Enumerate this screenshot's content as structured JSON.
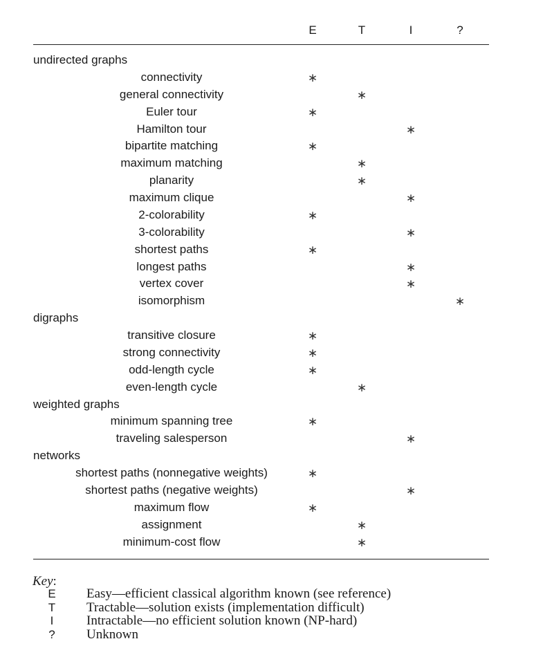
{
  "columns": [
    "E",
    "T",
    "I",
    "?"
  ],
  "groups": [
    {
      "label": "undirected graphs",
      "items": [
        {
          "label": "connectivity",
          "mark": "E"
        },
        {
          "label": "general connectivity",
          "mark": "T"
        },
        {
          "label": "Euler tour",
          "mark": "E"
        },
        {
          "label": "Hamilton tour",
          "mark": "I"
        },
        {
          "label": "bipartite matching",
          "mark": "E"
        },
        {
          "label": "maximum matching",
          "mark": "T"
        },
        {
          "label": "planarity",
          "mark": "T"
        },
        {
          "label": "maximum clique",
          "mark": "I"
        },
        {
          "label": "2-colorability",
          "mark": "E"
        },
        {
          "label": "3-colorability",
          "mark": "I"
        },
        {
          "label": "shortest paths",
          "mark": "E"
        },
        {
          "label": "longest paths",
          "mark": "I"
        },
        {
          "label": "vertex cover",
          "mark": "I"
        },
        {
          "label": "isomorphism",
          "mark": "?"
        }
      ]
    },
    {
      "label": "digraphs",
      "items": [
        {
          "label": "transitive closure",
          "mark": "E"
        },
        {
          "label": "strong connectivity",
          "mark": "E"
        },
        {
          "label": "odd-length cycle",
          "mark": "E"
        },
        {
          "label": "even-length cycle",
          "mark": "T"
        }
      ]
    },
    {
      "label": "weighted graphs",
      "items": [
        {
          "label": "minimum spanning tree",
          "mark": "E"
        },
        {
          "label": "traveling salesperson",
          "mark": "I"
        }
      ]
    },
    {
      "label": "networks",
      "items": [
        {
          "label": "shortest paths (nonnegative weights)",
          "mark": "E"
        },
        {
          "label": "shortest paths (negative weights)",
          "mark": "I"
        },
        {
          "label": "maximum flow",
          "mark": "E"
        },
        {
          "label": "assignment",
          "mark": "T"
        },
        {
          "label": "minimum-cost flow",
          "mark": "T"
        }
      ]
    }
  ],
  "mark_symbol": "∗",
  "key": {
    "title": "Key",
    "colon": ":",
    "entries": [
      {
        "code": "E",
        "text": "Easy—efficient classical algorithm known (see reference)"
      },
      {
        "code": "T",
        "text": "Tractable—solution exists (implementation difficult)"
      },
      {
        "code": "I",
        "text": "Intractable—no efficient solution known (NP-hard)"
      },
      {
        "code": "?",
        "text": "Unknown"
      }
    ]
  }
}
